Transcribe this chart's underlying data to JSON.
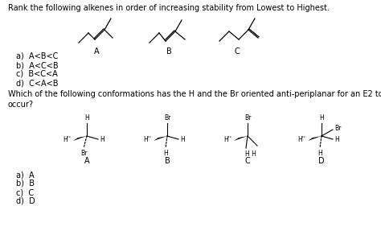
{
  "title1": "Rank the following alkenes in order of increasing stability from Lowest to Highest.",
  "q1_options": [
    "a)  A<B<C",
    "b)  A<C<B",
    "c)  B<C<A",
    "d)  C<A<B"
  ],
  "title2": "Which of the following conformations has the H and the Br oriented anti-periplanar for an E2 to\noccur?",
  "q2_options": [
    "a)  A",
    "b)  B",
    "c)  C",
    "d)  D"
  ],
  "bg_color": "#ffffff",
  "text_color": "#000000",
  "font_size": 7.0
}
